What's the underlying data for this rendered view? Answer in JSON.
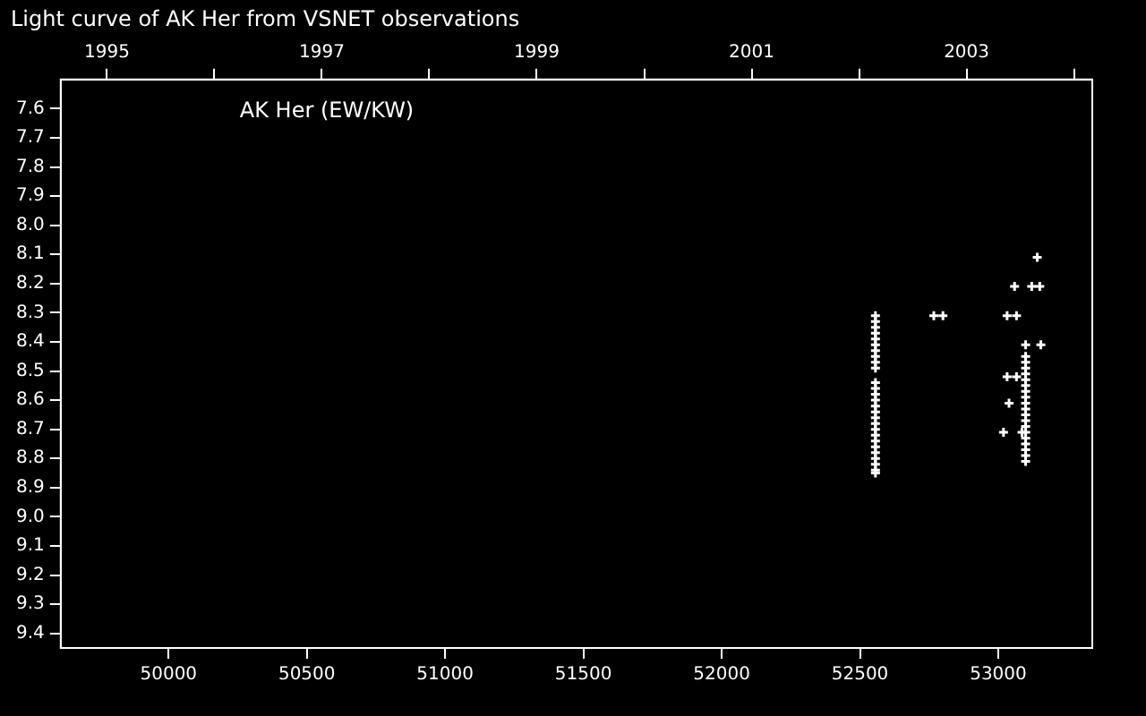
{
  "chart_data": {
    "type": "scatter",
    "title": "Light curve of AK Her from VSNET observations",
    "annotations": [
      "AK Her (EW/KW)"
    ],
    "series": [
      {
        "color": "#ffffff",
        "x": [
          52556,
          52556,
          52556,
          52556,
          52556,
          52556,
          52556,
          52556,
          52556,
          52556,
          52556,
          52556,
          52556,
          52556,
          52556,
          52556,
          52556,
          52556,
          52556,
          52556,
          52556,
          52556,
          52556,
          52556,
          52556,
          52556,
          52556,
          52767,
          52800,
          53141,
          53059,
          53121,
          53150,
          53032,
          53066,
          53099,
          53154,
          53032,
          53066,
          53039,
          53019,
          53086,
          53099,
          53099,
          53099,
          53099,
          53099,
          53099,
          53099,
          53099,
          53099,
          53099,
          53099,
          53099,
          53099,
          53099,
          53099,
          53099,
          53099,
          53099,
          53099
        ],
        "values": [
          8.31,
          8.33,
          8.35,
          8.37,
          8.39,
          8.41,
          8.43,
          8.45,
          8.47,
          8.49,
          8.54,
          8.56,
          8.58,
          8.6,
          8.62,
          8.64,
          8.66,
          8.68,
          8.7,
          8.72,
          8.74,
          8.76,
          8.78,
          8.8,
          8.82,
          8.84,
          8.85,
          8.31,
          8.31,
          8.11,
          8.21,
          8.21,
          8.21,
          8.31,
          8.31,
          8.41,
          8.41,
          8.52,
          8.52,
          8.61,
          8.71,
          8.71,
          8.45,
          8.47,
          8.49,
          8.51,
          8.53,
          8.55,
          8.57,
          8.59,
          8.61,
          8.63,
          8.65,
          8.67,
          8.69,
          8.71,
          8.73,
          8.75,
          8.77,
          8.79,
          8.81
        ]
      }
    ],
    "xlim": [
      49610,
      53340
    ],
    "xticks": [
      50000,
      50500,
      51000,
      51500,
      52000,
      52500,
      53000
    ],
    "x2lim": [
      1994.57,
      2004.17
    ],
    "x2ticks": [
      1995,
      {
        "value": 1996,
        "label": null
      },
      1997,
      {
        "value": 1998,
        "label": null
      },
      1999,
      {
        "value": 2000,
        "label": null
      },
      2001,
      {
        "value": 2002,
        "label": null
      },
      2003,
      {
        "value": 2004,
        "label": null
      }
    ],
    "ylim": [
      9.45,
      7.5
    ],
    "yticks": [
      7.6,
      7.7,
      7.8,
      7.9,
      {
        "value": 8,
        "label": "8.0"
      },
      8.1,
      8.2,
      8.3,
      8.4,
      8.5,
      8.6,
      8.7,
      8.8,
      8.9,
      {
        "value": 9,
        "label": "9.0"
      },
      9.1,
      9.2,
      9.3,
      9.4
    ],
    "grid": false,
    "legend": false,
    "marker": "cross"
  }
}
